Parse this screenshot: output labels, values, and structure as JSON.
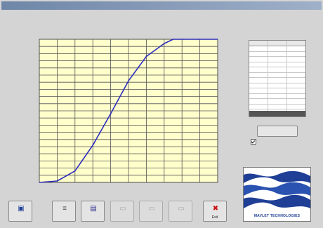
{
  "window": {
    "title": ""
  },
  "colors": {
    "plot_background": "#ffffcc",
    "grid": "#555555",
    "curve": "#2b2bbf",
    "logo_blue": "#1f3f96",
    "exit_red": "#cc1111"
  },
  "chart_data": {
    "type": "line",
    "title": "",
    "xlabel": "",
    "ylabel": "",
    "x_ticks": [
      "",
      "",
      "",
      "",
      "",
      "",
      "",
      "",
      "",
      "",
      ""
    ],
    "y_ticks": [
      "",
      "",
      "",
      "",
      "",
      "",
      "",
      "",
      "",
      "",
      "",
      "",
      "",
      "",
      "",
      "",
      "",
      "",
      "",
      "",
      ""
    ],
    "xlim": [
      0,
      10
    ],
    "ylim": [
      0,
      1
    ],
    "grid": true,
    "series": [
      {
        "x": [
          0,
          1,
          2,
          3,
          4,
          5,
          6,
          7,
          7.5,
          8,
          9,
          10
        ],
        "y": [
          0.0,
          0.01,
          0.08,
          0.26,
          0.48,
          0.71,
          0.88,
          0.97,
          1.0,
          1.0,
          1.0,
          1.0
        ]
      }
    ]
  },
  "table": {
    "rows": 13,
    "columns": 3
  },
  "controls": {
    "user_parameters_label": "",
    "checkbox_label": "",
    "checkbox_checked": true
  },
  "logo": {
    "text": "MAVLET TECHNOLOGIES"
  },
  "toolbar": [
    {
      "name": "new-graph-button",
      "icon": "new-graph-icon",
      "label": "",
      "enabled": true
    },
    {
      "name": "data-button",
      "icon": "data-icon",
      "label": "",
      "enabled": true
    },
    {
      "name": "save-button",
      "icon": "save-icon",
      "label": "",
      "enabled": true
    },
    {
      "name": "tool-button-4",
      "icon": "blank-icon",
      "label": "",
      "enabled": false
    },
    {
      "name": "tool-button-5",
      "icon": "blank-icon",
      "label": "",
      "enabled": false
    },
    {
      "name": "tool-button-6",
      "icon": "blank-icon",
      "label": "",
      "enabled": false
    },
    {
      "name": "exit-button",
      "icon": "exit-icon",
      "label": "Exit",
      "enabled": true
    }
  ]
}
